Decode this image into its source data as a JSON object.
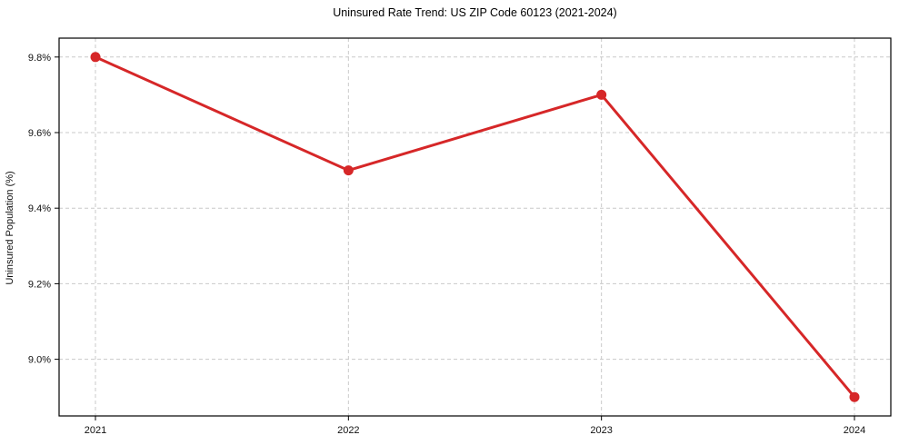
{
  "chart_data": {
    "type": "line",
    "title": "Uninsured Rate Trend: US ZIP Code 60123 (2021-2024)",
    "xlabel": "",
    "ylabel": "Uninsured Population (%)",
    "categories": [
      "2021",
      "2022",
      "2023",
      "2024"
    ],
    "values": [
      9.8,
      9.5,
      9.7,
      8.9
    ],
    "ytick_values": [
      9.0,
      9.2,
      9.4,
      9.6,
      9.8
    ],
    "ytick_labels": [
      "9.0%",
      "9.2%",
      "9.4%",
      "9.6%",
      "9.8%"
    ],
    "ylim": [
      8.85,
      9.85
    ],
    "grid": true,
    "grid_style": "dashed",
    "legend": false,
    "line_color": "#d62728",
    "marker_color": "#d62728",
    "grid_color": "#c9c9c9",
    "axis_color": "#000000",
    "text_color": "#111111"
  }
}
